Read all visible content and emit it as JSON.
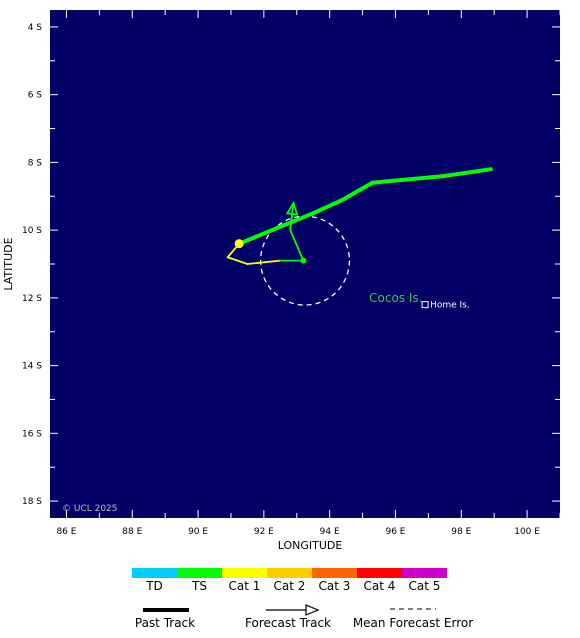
{
  "map": {
    "background_color": "#000066",
    "x_axis_label": "LONGITUDE",
    "y_axis_label": "LATITUDE",
    "lon_range": [
      85.5,
      101.0
    ],
    "lat_range": [
      -18.5,
      -3.5
    ],
    "lon_ticks": [
      "86 E",
      "88 E",
      "90 E",
      "92 E",
      "94 E",
      "96 E",
      "98 E",
      "100 E"
    ],
    "lat_ticks": [
      "4 S",
      "6 S",
      "8 S",
      "10 S",
      "12 S",
      "14 S",
      "16 S",
      "18 S"
    ],
    "copyright": "© UCL 2025"
  },
  "places": [
    {
      "name": "Cocos Is.",
      "lon": 95.2,
      "lat": -12.0,
      "color": "#33cc33"
    },
    {
      "name": "Home Is.",
      "lon": 96.9,
      "lat": -12.2,
      "color": "#ffffff"
    }
  ],
  "past_track": [
    {
      "lon": 98.9,
      "lat": -8.2,
      "category": "TS"
    },
    {
      "lon": 97.5,
      "lat": -8.4,
      "category": "TS"
    },
    {
      "lon": 95.3,
      "lat": -8.6,
      "category": "TS"
    },
    {
      "lon": 94.4,
      "lat": -9.1,
      "category": "TS"
    },
    {
      "lon": 93.5,
      "lat": -9.5,
      "category": "TS"
    },
    {
      "lon": 92.5,
      "lat": -9.9,
      "category": "TS"
    },
    {
      "lon": 91.25,
      "lat": -10.4,
      "category": "TS"
    }
  ],
  "current_position": {
    "lon": 91.25,
    "lat": -10.4,
    "color": "#ffff00"
  },
  "forecast_track": [
    {
      "lon": 91.25,
      "lat": -10.4,
      "category": "Cat 1"
    },
    {
      "lon": 90.9,
      "lat": -10.8,
      "category": "Cat 1"
    },
    {
      "lon": 91.5,
      "lat": -11.0,
      "category": "Cat 1"
    },
    {
      "lon": 92.5,
      "lat": -10.9,
      "category": "TS"
    },
    {
      "lon": 93.2,
      "lat": -10.9,
      "category": "TS"
    },
    {
      "lon": 92.8,
      "lat": -10.0,
      "category": "TS"
    },
    {
      "lon": 92.9,
      "lat": -9.2,
      "category": "TS"
    }
  ],
  "forecast_end": {
    "lon": 93.2,
    "lat": -10.9
  },
  "error_circle": {
    "lon": 93.25,
    "lat": -10.9,
    "radius_deg": 1.35
  },
  "legend": {
    "categories": [
      {
        "label": "TD",
        "color": "#00ccff"
      },
      {
        "label": "TS",
        "color": "#00ff00"
      },
      {
        "label": "Cat 1",
        "color": "#ffff00"
      },
      {
        "label": "Cat 2",
        "color": "#ffcc00"
      },
      {
        "label": "Cat 3",
        "color": "#ff6600"
      },
      {
        "label": "Cat 4",
        "color": "#ff0000"
      },
      {
        "label": "Cat 5",
        "color": "#cc00cc"
      }
    ],
    "past_track_label": "Past Track",
    "forecast_track_label": "Forecast Track",
    "mean_error_label": "Mean Forecast Error"
  }
}
